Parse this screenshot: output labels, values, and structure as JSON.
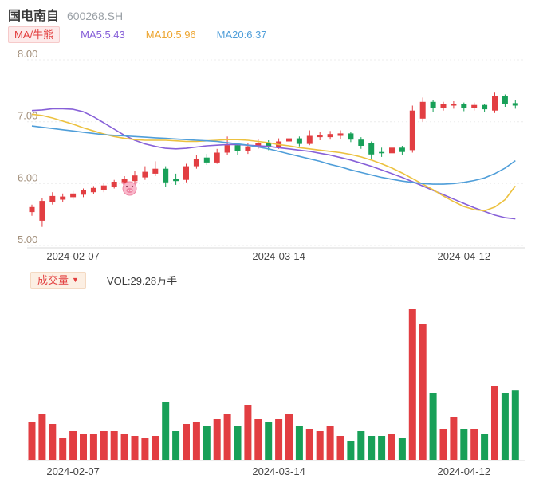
{
  "header": {
    "title": "国电南自",
    "code": "600268.SH"
  },
  "legend": {
    "badge": "MA/牛熊",
    "items": [
      {
        "label": "MA5:5.43",
        "color": "#8760d8"
      },
      {
        "label": "MA10:5.96",
        "color": "#eda52f"
      },
      {
        "label": "MA20:6.37",
        "color": "#4f9ed9"
      }
    ]
  },
  "volume_panel": {
    "badge": "成交量",
    "badge_arrow": "▼",
    "value": "VOL:29.28万手"
  },
  "chart_data": {
    "type": "candlestick_with_volume",
    "title": "国电南自 600268.SH 日K线",
    "price_axis": {
      "min": 5.0,
      "max": 8.0,
      "ticks": [
        8.0,
        7.0,
        6.0,
        5.0
      ]
    },
    "volume_axis": {
      "unit": "万手",
      "max": 63
    },
    "x_labels": [
      {
        "index": 4,
        "label": "2024-02-07"
      },
      {
        "index": 24,
        "label": "2024-03-14"
      },
      {
        "index": 42,
        "label": "2024-04-12"
      }
    ],
    "up_color": "#e23e42",
    "down_color": "#18a058",
    "candles_format": [
      "open",
      "high",
      "low",
      "close",
      "volume_wan_shou"
    ],
    "candles": [
      [
        5.54,
        5.66,
        5.48,
        5.62,
        16
      ],
      [
        5.4,
        5.76,
        5.3,
        5.72,
        19
      ],
      [
        5.7,
        5.86,
        5.66,
        5.8,
        15
      ],
      [
        5.74,
        5.84,
        5.7,
        5.79,
        9
      ],
      [
        5.78,
        5.88,
        5.74,
        5.84,
        12
      ],
      [
        5.82,
        5.92,
        5.78,
        5.89,
        11
      ],
      [
        5.86,
        5.96,
        5.83,
        5.93,
        11
      ],
      [
        5.9,
        6.0,
        5.86,
        5.97,
        12
      ],
      [
        5.95,
        6.06,
        5.92,
        6.03,
        12
      ],
      [
        6.0,
        6.12,
        5.96,
        6.08,
        11
      ],
      [
        6.04,
        6.2,
        6.0,
        6.13,
        10
      ],
      [
        6.1,
        6.28,
        6.06,
        6.19,
        9
      ],
      [
        6.16,
        6.36,
        6.12,
        6.24,
        10
      ],
      [
        6.24,
        6.28,
        5.94,
        6.02,
        24
      ],
      [
        6.08,
        6.16,
        5.98,
        6.04,
        12
      ],
      [
        6.06,
        6.32,
        6.02,
        6.28,
        15
      ],
      [
        6.28,
        6.46,
        6.24,
        6.4,
        16
      ],
      [
        6.42,
        6.48,
        6.3,
        6.34,
        14
      ],
      [
        6.34,
        6.56,
        6.32,
        6.5,
        17
      ],
      [
        6.5,
        6.76,
        6.46,
        6.62,
        19
      ],
      [
        6.62,
        6.66,
        6.46,
        6.52,
        14
      ],
      [
        6.52,
        6.66,
        6.48,
        6.6,
        23
      ],
      [
        6.6,
        6.72,
        6.56,
        6.66,
        17
      ],
      [
        6.66,
        6.7,
        6.54,
        6.59,
        16
      ],
      [
        6.59,
        6.73,
        6.56,
        6.68,
        17
      ],
      [
        6.68,
        6.79,
        6.64,
        6.73,
        19
      ],
      [
        6.73,
        6.76,
        6.6,
        6.64,
        14
      ],
      [
        6.64,
        6.86,
        6.62,
        6.77,
        13
      ],
      [
        6.75,
        6.84,
        6.7,
        6.79,
        12
      ],
      [
        6.75,
        6.85,
        6.71,
        6.8,
        14
      ],
      [
        6.77,
        6.86,
        6.72,
        6.81,
        10
      ],
      [
        6.81,
        6.83,
        6.67,
        6.71,
        8
      ],
      [
        6.71,
        6.75,
        6.56,
        6.61,
        12
      ],
      [
        6.65,
        6.68,
        6.4,
        6.47,
        10
      ],
      [
        6.51,
        6.58,
        6.43,
        6.49,
        10
      ],
      [
        6.49,
        6.63,
        6.45,
        6.58,
        11
      ],
      [
        6.58,
        6.61,
        6.46,
        6.51,
        9
      ],
      [
        6.54,
        7.26,
        6.5,
        7.18,
        63
      ],
      [
        7.05,
        7.39,
        7.0,
        7.32,
        57
      ],
      [
        7.32,
        7.35,
        7.16,
        7.22,
        28
      ],
      [
        7.22,
        7.32,
        7.18,
        7.28,
        13
      ],
      [
        7.26,
        7.33,
        7.21,
        7.29,
        18
      ],
      [
        7.29,
        7.31,
        7.17,
        7.22,
        13
      ],
      [
        7.22,
        7.31,
        7.18,
        7.27,
        13
      ],
      [
        7.27,
        7.29,
        7.15,
        7.2,
        11
      ],
      [
        7.18,
        7.47,
        7.14,
        7.42,
        31
      ],
      [
        7.41,
        7.44,
        7.24,
        7.29,
        28
      ],
      [
        7.3,
        7.35,
        7.21,
        7.26,
        29.28
      ]
    ],
    "ma_lines": [
      {
        "name": "MA5",
        "color": "#8760d8",
        "values": [
          7.18,
          7.19,
          7.21,
          7.21,
          7.2,
          7.16,
          7.08,
          6.98,
          6.88,
          6.78,
          6.7,
          6.64,
          6.6,
          6.57,
          6.56,
          6.57,
          6.59,
          6.61,
          6.62,
          6.63,
          6.63,
          6.62,
          6.61,
          6.6,
          6.58,
          6.56,
          6.54,
          6.52,
          6.49,
          6.46,
          6.42,
          6.38,
          6.33,
          6.28,
          6.22,
          6.16,
          6.1,
          6.03,
          5.96,
          5.89,
          5.82,
          5.75,
          5.68,
          5.61,
          5.55,
          5.49,
          5.45,
          5.43
        ]
      },
      {
        "name": "MA10",
        "color": "#ecc13f",
        "values": [
          7.12,
          7.1,
          7.06,
          7.01,
          6.96,
          6.9,
          6.85,
          6.8,
          6.76,
          6.73,
          6.71,
          6.7,
          6.7,
          6.7,
          6.69,
          6.68,
          6.68,
          6.69,
          6.7,
          6.71,
          6.71,
          6.7,
          6.68,
          6.66,
          6.63,
          6.61,
          6.58,
          6.56,
          6.54,
          6.52,
          6.5,
          6.47,
          6.43,
          6.38,
          6.32,
          6.25,
          6.17,
          6.08,
          5.99,
          5.9,
          5.8,
          5.71,
          5.63,
          5.58,
          5.56,
          5.62,
          5.74,
          5.96
        ]
      },
      {
        "name": "MA20",
        "color": "#4f9ed9",
        "values": [
          6.93,
          6.91,
          6.89,
          6.87,
          6.85,
          6.83,
          6.81,
          6.79,
          6.78,
          6.77,
          6.76,
          6.75,
          6.74,
          6.73,
          6.72,
          6.71,
          6.7,
          6.69,
          6.68,
          6.66,
          6.64,
          6.62,
          6.59,
          6.56,
          6.52,
          6.48,
          6.44,
          6.4,
          6.36,
          6.31,
          6.27,
          6.22,
          6.18,
          6.14,
          6.1,
          6.07,
          6.04,
          6.02,
          6.0,
          5.99,
          5.99,
          6.0,
          6.02,
          6.05,
          6.09,
          6.16,
          6.25,
          6.37
        ]
      }
    ],
    "marker": {
      "index": 9.5,
      "price": 5.92,
      "type": "bull-bear-pig"
    }
  }
}
